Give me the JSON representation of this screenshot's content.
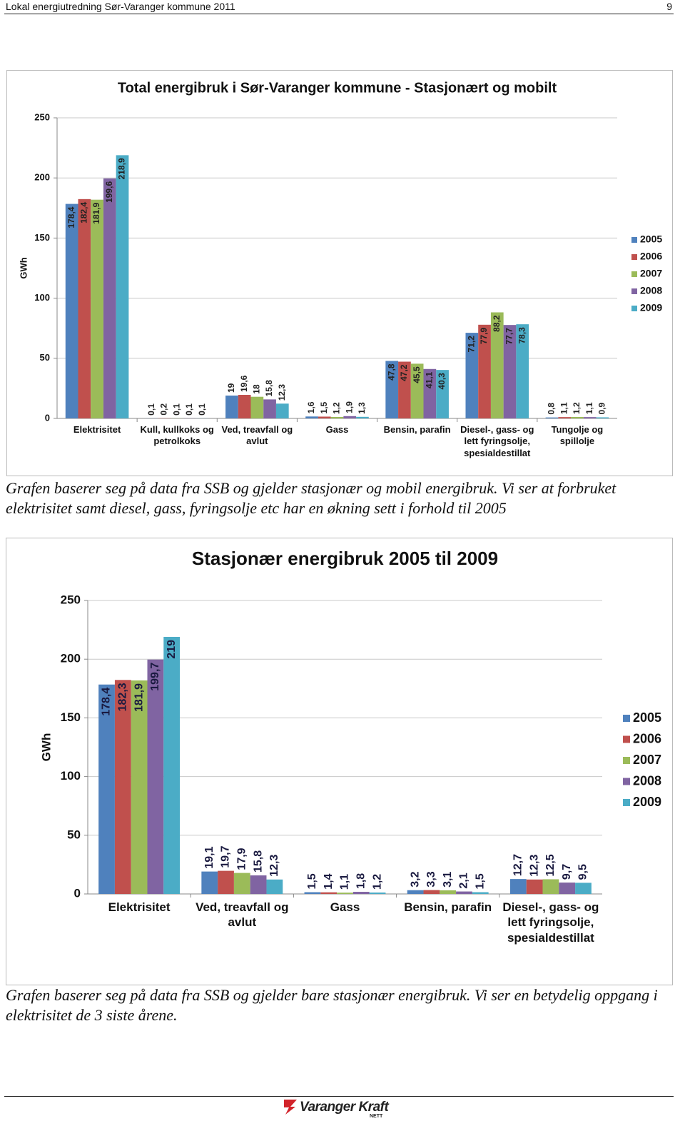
{
  "header": {
    "title": "Lokal energiutredning Sør-Varanger kommune 2011",
    "page": "9"
  },
  "chart_data": [
    {
      "type": "bar",
      "title": "Total energibruk i Sør-Varanger kommune - Stasjonært og mobilt",
      "ylabel": "GWh",
      "categories": [
        "Elektrisitet",
        "Kull, kullkoks og petrolkoks",
        "Ved, treavfall og avlut",
        "Gass",
        "Bensin, parafin",
        "Diesel-, gass- og lett fyringsolje, spesialdestillat",
        "Tungolje og spillolje"
      ],
      "series": [
        {
          "name": "2005",
          "color": "#4f81bd",
          "values": [
            178.4,
            0.1,
            19,
            1.6,
            47.8,
            71.2,
            0.8
          ],
          "value_labels": [
            "178,4",
            "0,1",
            "19",
            "1,6",
            "47,8",
            "71,2",
            "0,8"
          ]
        },
        {
          "name": "2006",
          "color": "#c0504d",
          "values": [
            182.4,
            0.2,
            19.6,
            1.5,
            47.2,
            77.9,
            1.1
          ],
          "value_labels": [
            "182,4",
            "0,2",
            "19,6",
            "1,5",
            "47,2",
            "77,9",
            "1,1"
          ]
        },
        {
          "name": "2007",
          "color": "#9bbb59",
          "values": [
            181.9,
            0.1,
            18,
            1.2,
            45.5,
            88.2,
            1.2
          ],
          "value_labels": [
            "181,9",
            "0,1",
            "18",
            "1,2",
            "45,5",
            "88,2",
            "1,2"
          ]
        },
        {
          "name": "2008",
          "color": "#8064a2",
          "values": [
            199.6,
            0.1,
            15.8,
            1.9,
            41.1,
            77.7,
            1.1
          ],
          "value_labels": [
            "199,6",
            "0,1",
            "15,8",
            "1,9",
            "41,1",
            "77,7",
            "1,1"
          ]
        },
        {
          "name": "2009",
          "color": "#4bacc6",
          "values": [
            218.9,
            0.1,
            12.3,
            1.3,
            40.3,
            78.3,
            0.9
          ],
          "value_labels": [
            "218,9",
            "0,1",
            "12,3",
            "1,3",
            "40,3",
            "78,3",
            "0,9"
          ]
        }
      ],
      "ylim": [
        0,
        250
      ],
      "yticks": [
        0,
        50,
        100,
        150,
        200,
        250
      ],
      "grid": true,
      "legend": "right"
    },
    {
      "type": "bar",
      "title": "Stasjonær energibruk 2005 til 2009",
      "ylabel": "GWh",
      "categories": [
        "Elektrisitet",
        "Ved, treavfall og avlut",
        "Gass",
        "Bensin, parafin",
        "Diesel-, gass- og lett fyringsolje, spesialdestillat"
      ],
      "series": [
        {
          "name": "2005",
          "color": "#4f81bd",
          "values": [
            178.4,
            19.1,
            1.5,
            3.2,
            12.7
          ],
          "value_labels": [
            "178,4",
            "19,1",
            "1,5",
            "3,2",
            "12,7"
          ]
        },
        {
          "name": "2006",
          "color": "#c0504d",
          "values": [
            182.3,
            19.7,
            1.4,
            3.3,
            12.3
          ],
          "value_labels": [
            "182,3",
            "19,7",
            "1,4",
            "3,3",
            "12,3"
          ]
        },
        {
          "name": "2007",
          "color": "#9bbb59",
          "values": [
            181.9,
            17.9,
            1.1,
            3.1,
            12.5
          ],
          "value_labels": [
            "181,9",
            "17,9",
            "1,1",
            "3,1",
            "12,5"
          ]
        },
        {
          "name": "2008",
          "color": "#8064a2",
          "values": [
            199.7,
            15.8,
            1.8,
            2.1,
            9.7
          ],
          "value_labels": [
            "199,7",
            "15,8",
            "1,8",
            "2,1",
            "9,7"
          ]
        },
        {
          "name": "2009",
          "color": "#4bacc6",
          "values": [
            219,
            12.3,
            1.2,
            1.5,
            9.5
          ],
          "value_labels": [
            "219",
            "12,3",
            "1,2",
            "1,5",
            "9,5"
          ]
        }
      ],
      "ylim": [
        0,
        250
      ],
      "yticks": [
        0,
        50,
        100,
        150,
        200,
        250
      ],
      "grid": true,
      "legend": "right"
    }
  ],
  "captions": [
    "Grafen baserer seg på data fra SSB og gjelder stasjonær og mobil energibruk. Vi ser at forbruket elektrisitet samt diesel, gass, fyringsolje etc har en økning sett i forhold til 2005",
    "Grafen baserer seg på data fra SSB og gjelder bare stasjonær energibruk. Vi ser en betydelig oppgang i elektrisitet de 3 siste årene."
  ],
  "footer": {
    "brand": "Varanger Kraft",
    "sub": "NETT"
  }
}
